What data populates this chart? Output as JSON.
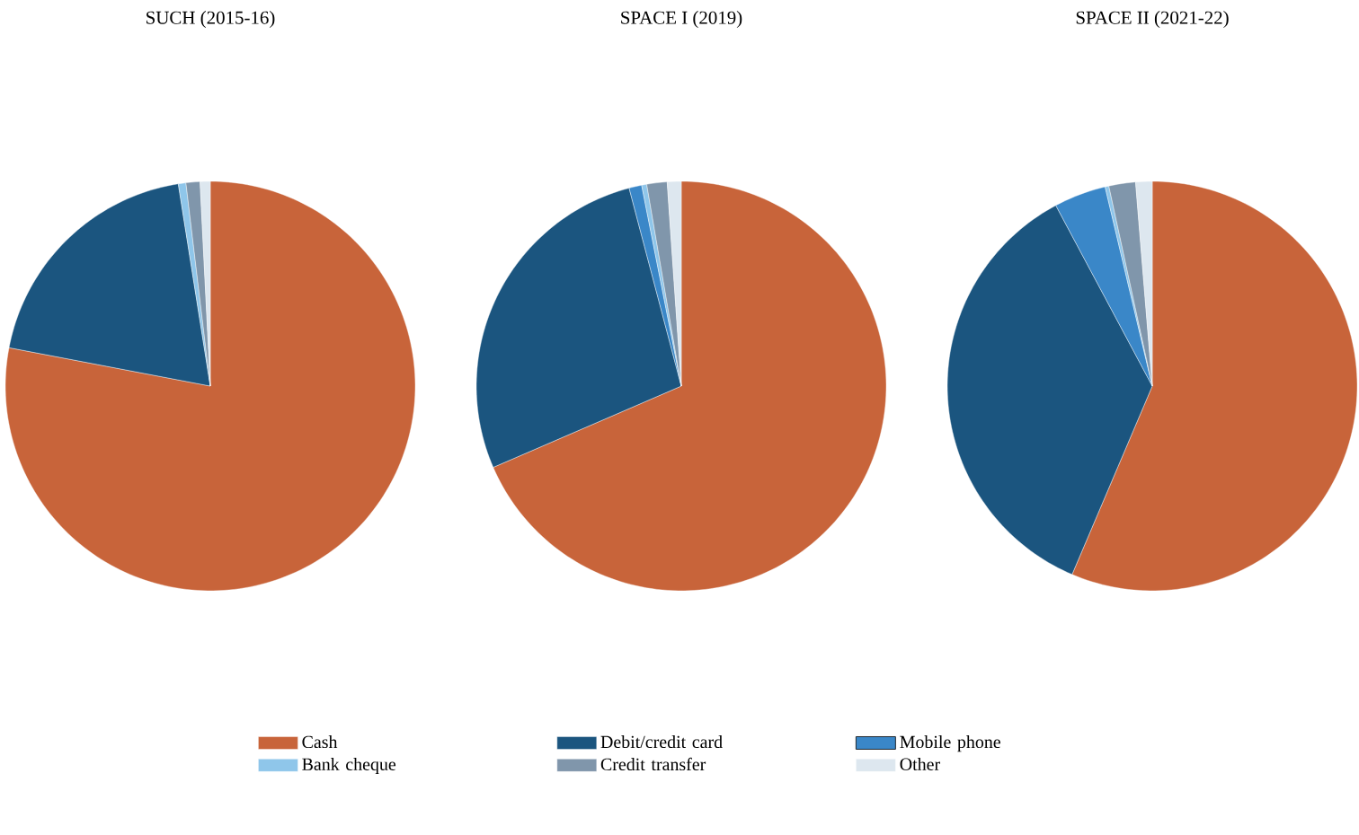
{
  "chart_data": [
    {
      "type": "pie",
      "title": "SUCH (2015-16)",
      "legend": "bottom",
      "categories": [
        "Cash",
        "Debit/credit card",
        "Mobile phone",
        "Bank cheque",
        "Credit transfer",
        "Other"
      ],
      "values": [
        78,
        19.5,
        null,
        0.6,
        1.1,
        0.8
      ],
      "colors": [
        "#c8643a",
        "#1b557f",
        "#3a87c8",
        "#8fc6ea",
        "#8096ab",
        "#dde7ef"
      ]
    },
    {
      "type": "pie",
      "title": "SPACE I (2019)",
      "categories": [
        null,
        null,
        null,
        null,
        null,
        null
      ],
      "values": [
        68.5,
        27.4,
        1,
        0.4,
        1.6,
        1.1
      ],
      "colors": [
        "#c8643a",
        "#1b557f",
        "#3a87c8",
        "#8fc6ea",
        "#8096ab",
        "#dde7ef"
      ]
    },
    {
      "type": "pie",
      "title": "SPACE II (2021-22)",
      "categories": [
        null,
        null,
        null,
        null,
        null,
        null
      ],
      "values": [
        56.4,
        35.8,
        4.1,
        0.3,
        2.1,
        1.3
      ],
      "colors": [
        "#c8643a",
        "#1b557f",
        "#3a87c8",
        "#8fc6ea",
        "#8096ab",
        "#dde7ef"
      ]
    }
  ]
}
